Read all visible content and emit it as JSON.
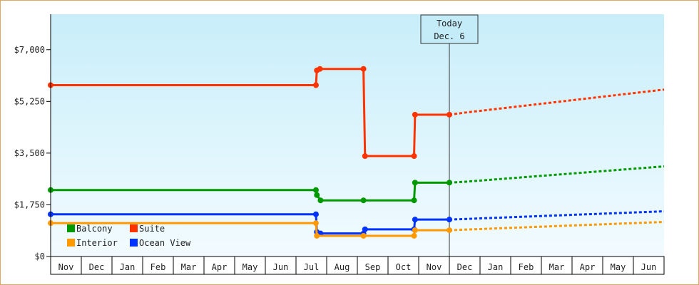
{
  "chart_data": {
    "type": "line",
    "title": "",
    "xlabel": "",
    "ylabel": "",
    "x_tick_labels": [
      "Nov",
      "Dec",
      "Jan",
      "Feb",
      "Mar",
      "Apr",
      "May",
      "Jun",
      "Jul",
      "Aug",
      "Sep",
      "Oct",
      "Nov",
      "Dec",
      "Jan",
      "Feb",
      "Mar",
      "Apr",
      "May",
      "Jun"
    ],
    "y_ticks": [
      {
        "value": 0,
        "label": "$0"
      },
      {
        "value": 1750,
        "label": "$1,750"
      },
      {
        "value": 3500,
        "label": "$3,500"
      },
      {
        "value": 5250,
        "label": "$5,250"
      },
      {
        "value": 7000,
        "label": "$7,000"
      }
    ],
    "ylim": [
      0,
      8200
    ],
    "xlim": [
      0,
      20
    ],
    "grid": false,
    "legend_position": "bottom-left",
    "today_marker": {
      "x": 13.0,
      "line1": "Today",
      "line2": "Dec. 6"
    },
    "series": [
      {
        "name": "Suite",
        "color": "#ff3300",
        "points": [
          [
            0.0,
            5800
          ],
          [
            8.65,
            5800
          ],
          [
            8.68,
            6300
          ],
          [
            8.78,
            6350
          ],
          [
            10.2,
            6350
          ],
          [
            10.25,
            3400
          ],
          [
            11.85,
            3400
          ],
          [
            11.88,
            4800
          ],
          [
            13.0,
            4800
          ]
        ],
        "forecast": [
          [
            13.0,
            4800
          ],
          [
            13.5,
            4870
          ],
          [
            14.0,
            4930
          ],
          [
            14.5,
            4990
          ],
          [
            15.0,
            5050
          ],
          [
            15.5,
            5110
          ],
          [
            16.0,
            5170
          ],
          [
            16.5,
            5230
          ],
          [
            17.0,
            5290
          ],
          [
            17.5,
            5350
          ],
          [
            18.0,
            5410
          ],
          [
            18.5,
            5470
          ],
          [
            19.0,
            5530
          ],
          [
            19.5,
            5590
          ],
          [
            20.0,
            5650
          ]
        ]
      },
      {
        "name": "Balcony",
        "color": "#009900",
        "points": [
          [
            0.0,
            2250
          ],
          [
            8.65,
            2250
          ],
          [
            8.68,
            2080
          ],
          [
            8.8,
            1900
          ],
          [
            10.2,
            1900
          ],
          [
            11.85,
            1900
          ],
          [
            11.88,
            2500
          ],
          [
            13.0,
            2500
          ]
        ],
        "forecast": [
          [
            13.0,
            2500
          ],
          [
            13.5,
            2530
          ],
          [
            14.0,
            2570
          ],
          [
            14.5,
            2610
          ],
          [
            15.0,
            2650
          ],
          [
            15.5,
            2690
          ],
          [
            16.0,
            2730
          ],
          [
            16.5,
            2770
          ],
          [
            17.0,
            2810
          ],
          [
            17.5,
            2850
          ],
          [
            18.0,
            2890
          ],
          [
            18.5,
            2930
          ],
          [
            19.0,
            2970
          ],
          [
            19.5,
            3010
          ],
          [
            20.0,
            3050
          ]
        ]
      },
      {
        "name": "Ocean View",
        "color": "#0033ff",
        "points": [
          [
            0.0,
            1430
          ],
          [
            8.65,
            1430
          ],
          [
            8.68,
            830
          ],
          [
            8.8,
            780
          ],
          [
            10.2,
            780
          ],
          [
            10.25,
            920
          ],
          [
            11.85,
            920
          ],
          [
            11.88,
            1250
          ],
          [
            13.0,
            1250
          ]
        ],
        "forecast": [
          [
            13.0,
            1250
          ],
          [
            13.5,
            1270
          ],
          [
            14.0,
            1290
          ],
          [
            14.5,
            1310
          ],
          [
            15.0,
            1330
          ],
          [
            15.5,
            1350
          ],
          [
            16.0,
            1370
          ],
          [
            16.5,
            1390
          ],
          [
            17.0,
            1410
          ],
          [
            17.5,
            1430
          ],
          [
            18.0,
            1450
          ],
          [
            18.5,
            1470
          ],
          [
            19.0,
            1490
          ],
          [
            19.5,
            1510
          ],
          [
            20.0,
            1530
          ]
        ]
      },
      {
        "name": "Interior",
        "color": "#ff9900",
        "points": [
          [
            0.0,
            1130
          ],
          [
            8.65,
            1130
          ],
          [
            8.68,
            700
          ],
          [
            10.2,
            700
          ],
          [
            11.85,
            700
          ],
          [
            11.88,
            890
          ],
          [
            13.0,
            890
          ]
        ],
        "forecast": [
          [
            13.0,
            890
          ],
          [
            13.5,
            910
          ],
          [
            14.0,
            930
          ],
          [
            14.5,
            950
          ],
          [
            15.0,
            970
          ],
          [
            15.5,
            990
          ],
          [
            16.0,
            1010
          ],
          [
            16.5,
            1030
          ],
          [
            17.0,
            1050
          ],
          [
            17.5,
            1070
          ],
          [
            18.0,
            1090
          ],
          [
            18.5,
            1110
          ],
          [
            19.0,
            1130
          ],
          [
            19.5,
            1150
          ],
          [
            20.0,
            1170
          ]
        ]
      }
    ],
    "legend": [
      {
        "name": "Balcony",
        "color": "#009900"
      },
      {
        "name": "Suite",
        "color": "#ff3300"
      },
      {
        "name": "Interior",
        "color": "#ff9900"
      },
      {
        "name": "Ocean View",
        "color": "#0033ff"
      }
    ]
  }
}
